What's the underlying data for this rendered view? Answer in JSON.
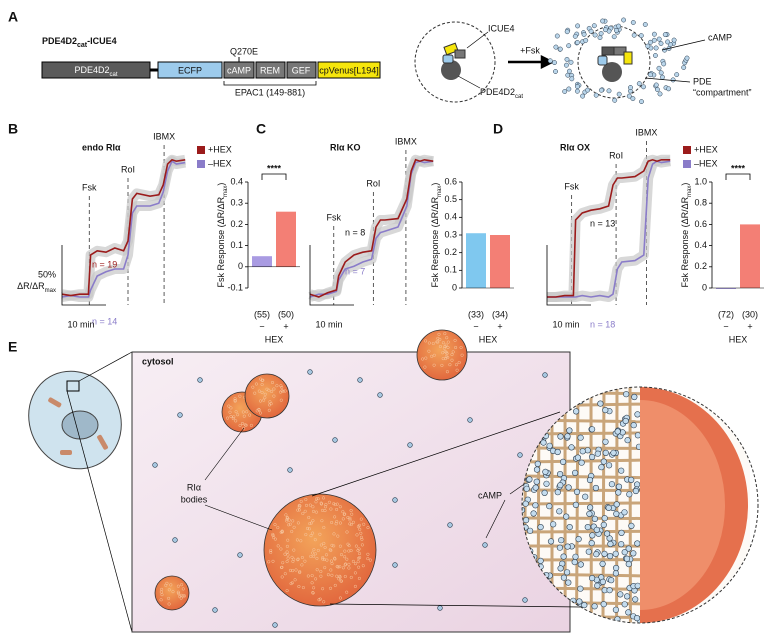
{
  "panel_a": {
    "label": "A",
    "construct_name": {
      "main": "PDE4D2",
      "sub": "cat",
      "suffix": "-ICUE4"
    },
    "domains": [
      {
        "main": "PDE4D2",
        "sub": "cat"
      },
      {
        "main": "ECFP"
      },
      {
        "main": "cAMP"
      },
      {
        "main": "REM"
      },
      {
        "main": "GEF"
      },
      {
        "main": "cpVenus[L194]"
      }
    ],
    "mutation": "Q270E",
    "bracket_label": "EPAC1 (149-881)",
    "schematic": {
      "sensor": "ICUE4",
      "pde": {
        "main": "PDE4D2",
        "sub": "cat"
      },
      "stimulus": "+Fsk",
      "camp": "cAMP",
      "compartment": [
        "PDE",
        "“compartment”"
      ]
    }
  },
  "charts": [
    {
      "label": "B",
      "title": "endo RIα",
      "trace": {
        "x": [
          0,
          2,
          4,
          6,
          6.5,
          8,
          10,
          12,
          14,
          15,
          16,
          17,
          20,
          22,
          23,
          24,
          25,
          26,
          28
        ],
        "series": [
          {
            "name": "–HEX",
            "color": "#8a7cc9",
            "n_label": "n = 14",
            "values": [
              0,
              0.01,
              0,
              0,
              0.05,
              0.15,
              0.18,
              0.2,
              0.2,
              0.3,
              0.6,
              0.65,
              0.65,
              0.67,
              0.75,
              0.9,
              0.97,
              0.95,
              0.96
            ]
          },
          {
            "name": "+HEX",
            "color": "#9b1b1b",
            "n_label": "n = 19",
            "values": [
              0.02,
              0.01,
              0.02,
              0.02,
              0.3,
              0.33,
              0.32,
              0.35,
              0.33,
              0.4,
              0.7,
              0.74,
              0.72,
              0.73,
              0.8,
              0.95,
              0.98,
              0.97,
              0.98
            ]
          }
        ],
        "stimuli": [
          {
            "name": "Fsk",
            "time": 6.2
          },
          {
            "name": "RoI",
            "time": 15
          },
          {
            "name": "IBMX",
            "time": 23.2
          }
        ],
        "scale_bar": {
          "y_label": "50%",
          "y_unit": {
            "main": "ΔR/ΔR",
            "sub": "max"
          },
          "x_label": "10 min"
        }
      },
      "bar": {
        "type": "bar",
        "ylabel": {
          "main": "Fsk Response (ΔR/ΔR",
          "sub": "max",
          "suffix": ")"
        },
        "categories": [
          "−",
          "+"
        ],
        "xlabel": "HEX",
        "counts": [
          "(55)",
          "(50)"
        ],
        "values": [
          0.05,
          0.26
        ],
        "colors": [
          "#a99be2",
          "#f37f75"
        ],
        "ylim": [
          -0.1,
          0.4
        ],
        "yticks": [
          -0.1,
          0,
          0.1,
          0.2,
          0.3,
          0.4
        ],
        "significance": "****"
      }
    },
    {
      "label": "C",
      "title": "RIα KO",
      "trace": {
        "x": [
          0,
          2,
          4,
          6,
          6.5,
          8,
          10,
          12,
          14,
          15,
          16,
          17,
          20,
          22,
          23,
          24,
          25,
          26,
          28
        ],
        "series": [
          {
            "color": "#8a7cc9",
            "n_label": "n = 7",
            "values": [
              0,
              0.02,
              0.02,
              0.04,
              0.12,
              0.2,
              0.22,
              0.25,
              0.27,
              0.42,
              0.46,
              0.47,
              0.5,
              0.65,
              0.88,
              0.96,
              0.97,
              0.96,
              0.97
            ]
          },
          {
            "color": "#9b1b1b",
            "n_label": "n = 8",
            "values": [
              0.02,
              0,
              0.03,
              0.05,
              0.15,
              0.25,
              0.3,
              0.32,
              0.33,
              0.5,
              0.55,
              0.55,
              0.56,
              0.7,
              0.9,
              0.98,
              0.97,
              0.98,
              0.97
            ]
          }
        ],
        "stimuli": [
          {
            "name": "Fsk",
            "time": 5.4
          },
          {
            "name": "RoI",
            "time": 14.4
          },
          {
            "name": "IBMX",
            "time": 21.8
          }
        ],
        "scale_bar": {
          "x_label": "10 min"
        }
      },
      "bar": {
        "type": "bar",
        "ylabel": {
          "main": "Fsk Response (ΔR/ΔR",
          "sub": "max",
          "suffix": ")"
        },
        "categories": [
          "−",
          "+"
        ],
        "xlabel": "HEX",
        "counts": [
          "(33)",
          "(34)"
        ],
        "values": [
          0.31,
          0.3
        ],
        "colors": [
          "#7fc8ef",
          "#f37f75"
        ],
        "ylim": [
          0,
          0.6
        ],
        "yticks": [
          0,
          0.1,
          0.2,
          0.3,
          0.4,
          0.5,
          0.6
        ]
      }
    },
    {
      "label": "D",
      "title": "RIα OX",
      "trace": {
        "x": [
          0,
          2,
          4,
          6,
          6.5,
          8,
          10,
          12,
          14,
          15,
          16,
          17,
          20,
          22,
          23,
          24,
          25,
          26,
          28
        ],
        "series": [
          {
            "name": "–HEX",
            "color": "#8a7cc9",
            "n_label": "n = 18",
            "values": [
              0,
              0,
              0,
              0,
              0,
              0.01,
              0,
              0.01,
              0,
              0.02,
              0.2,
              0.25,
              0.26,
              0.3,
              0.85,
              0.95,
              0.97,
              0.96,
              0.97
            ]
          },
          {
            "name": "+HEX",
            "color": "#9b1b1b",
            "n_label": "n = 13",
            "values": [
              0,
              0,
              0.01,
              0.01,
              0.55,
              0.6,
              0.62,
              0.63,
              0.65,
              0.8,
              0.85,
              0.85,
              0.86,
              0.9,
              0.97,
              0.98,
              0.97,
              0.98,
              0.98
            ]
          }
        ],
        "stimuli": [
          {
            "name": "Fsk",
            "time": 5.6
          },
          {
            "name": "RoI",
            "time": 15.7
          },
          {
            "name": "IBMX",
            "time": 22.6
          }
        ],
        "scale_bar": {
          "x_label": "10 min"
        }
      },
      "bar": {
        "type": "bar",
        "ylabel": {
          "main": "Fsk Response (ΔR/ΔR",
          "sub": "max",
          "suffix": ")"
        },
        "categories": [
          "−",
          "+"
        ],
        "xlabel": "HEX",
        "counts": [
          "(72)",
          "(30)"
        ],
        "values": [
          0,
          0.6
        ],
        "colors": [
          "#a99be2",
          "#f37f75"
        ],
        "ylim": [
          0,
          1
        ],
        "yticks": [
          0,
          0.2,
          0.4,
          0.6,
          0.8,
          {
            "value": 1,
            "label": "1.0"
          }
        ],
        "significance": "****"
      }
    }
  ],
  "panel_e": {
    "label": "E",
    "region": "cytosol",
    "bodies_label": [
      "RIα",
      "bodies"
    ],
    "camp_label": "cAMP"
  }
}
